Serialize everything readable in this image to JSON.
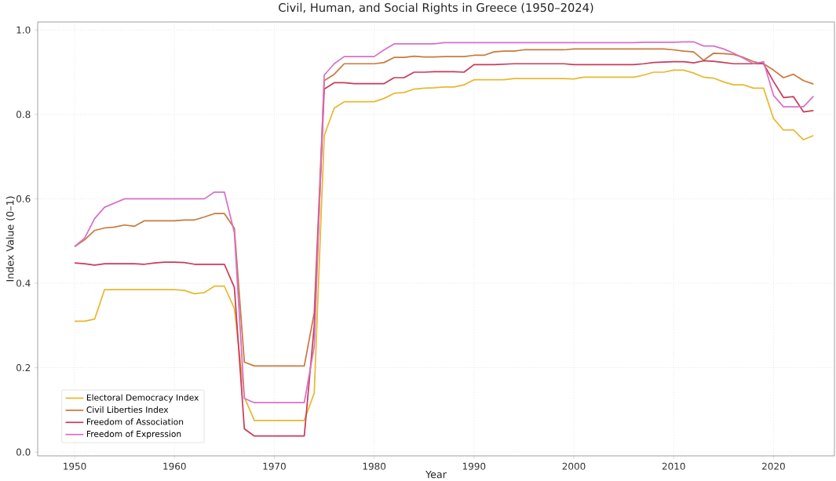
{
  "chart_data": {
    "type": "line",
    "title": "Civil, Human, and Social Rights in Greece (1950–2024)",
    "xlabel": "Year",
    "ylabel": "Index Value (0–1)",
    "x": [
      1950,
      1951,
      1952,
      1953,
      1954,
      1955,
      1956,
      1957,
      1958,
      1959,
      1960,
      1961,
      1962,
      1963,
      1964,
      1965,
      1966,
      1967,
      1968,
      1969,
      1970,
      1971,
      1972,
      1973,
      1974,
      1975,
      1976,
      1977,
      1978,
      1979,
      1980,
      1981,
      1982,
      1983,
      1984,
      1985,
      1986,
      1987,
      1988,
      1989,
      1990,
      1991,
      1992,
      1993,
      1994,
      1995,
      1996,
      1997,
      1998,
      1999,
      2000,
      2001,
      2002,
      2003,
      2004,
      2005,
      2006,
      2007,
      2008,
      2009,
      2010,
      2011,
      2012,
      2013,
      2014,
      2015,
      2016,
      2017,
      2018,
      2019,
      2020,
      2021,
      2022,
      2023,
      2024
    ],
    "series": [
      {
        "name": "Electoral Democracy Index",
        "color": "#e8b830",
        "values": [
          0.31,
          0.31,
          0.315,
          0.385,
          0.385,
          0.385,
          0.385,
          0.385,
          0.385,
          0.385,
          0.385,
          0.383,
          0.375,
          0.378,
          0.393,
          0.393,
          0.34,
          0.13,
          0.075,
          0.075,
          0.075,
          0.075,
          0.075,
          0.075,
          0.14,
          0.75,
          0.815,
          0.83,
          0.83,
          0.83,
          0.83,
          0.838,
          0.85,
          0.852,
          0.86,
          0.862,
          0.863,
          0.865,
          0.865,
          0.87,
          0.882,
          0.882,
          0.882,
          0.882,
          0.885,
          0.885,
          0.885,
          0.885,
          0.885,
          0.885,
          0.884,
          0.888,
          0.888,
          0.888,
          0.888,
          0.888,
          0.888,
          0.893,
          0.9,
          0.9,
          0.905,
          0.905,
          0.898,
          0.888,
          0.886,
          0.877,
          0.87,
          0.87,
          0.862,
          0.862,
          0.79,
          0.763,
          0.763,
          0.74,
          0.75
        ]
      },
      {
        "name": "Civil Liberties Index",
        "color": "#c87a3c",
        "values": [
          0.487,
          0.503,
          0.525,
          0.531,
          0.533,
          0.538,
          0.535,
          0.548,
          0.548,
          0.548,
          0.548,
          0.55,
          0.55,
          0.557,
          0.565,
          0.565,
          0.53,
          0.213,
          0.204,
          0.204,
          0.204,
          0.204,
          0.204,
          0.204,
          0.33,
          0.88,
          0.895,
          0.92,
          0.92,
          0.92,
          0.92,
          0.923,
          0.935,
          0.935,
          0.938,
          0.936,
          0.936,
          0.937,
          0.937,
          0.937,
          0.94,
          0.94,
          0.948,
          0.95,
          0.95,
          0.953,
          0.953,
          0.953,
          0.953,
          0.953,
          0.955,
          0.955,
          0.955,
          0.955,
          0.955,
          0.955,
          0.955,
          0.955,
          0.955,
          0.955,
          0.953,
          0.95,
          0.948,
          0.928,
          0.945,
          0.944,
          0.942,
          0.935,
          0.925,
          0.92,
          0.905,
          0.887,
          0.895,
          0.88,
          0.872
        ]
      },
      {
        "name": "Freedom of Association",
        "color": "#c83c5a",
        "values": [
          0.448,
          0.446,
          0.443,
          0.446,
          0.446,
          0.446,
          0.446,
          0.445,
          0.448,
          0.45,
          0.45,
          0.449,
          0.445,
          0.445,
          0.445,
          0.445,
          0.39,
          0.055,
          0.038,
          0.038,
          0.038,
          0.038,
          0.038,
          0.038,
          0.3,
          0.86,
          0.875,
          0.875,
          0.873,
          0.873,
          0.873,
          0.873,
          0.887,
          0.887,
          0.9,
          0.9,
          0.901,
          0.901,
          0.901,
          0.9,
          0.918,
          0.918,
          0.918,
          0.919,
          0.92,
          0.92,
          0.92,
          0.92,
          0.92,
          0.92,
          0.918,
          0.918,
          0.918,
          0.918,
          0.918,
          0.918,
          0.918,
          0.92,
          0.923,
          0.924,
          0.925,
          0.925,
          0.922,
          0.927,
          0.926,
          0.923,
          0.92,
          0.92,
          0.92,
          0.92,
          0.878,
          0.84,
          0.842,
          0.806,
          0.809
        ]
      },
      {
        "name": "Freedom of Expression",
        "color": "#d870c8",
        "values": [
          0.487,
          0.507,
          0.553,
          0.58,
          0.59,
          0.6,
          0.6,
          0.6,
          0.6,
          0.6,
          0.6,
          0.6,
          0.6,
          0.6,
          0.616,
          0.616,
          0.52,
          0.127,
          0.117,
          0.117,
          0.117,
          0.117,
          0.117,
          0.117,
          0.25,
          0.893,
          0.92,
          0.937,
          0.937,
          0.937,
          0.937,
          0.953,
          0.967,
          0.967,
          0.967,
          0.967,
          0.967,
          0.97,
          0.97,
          0.97,
          0.97,
          0.97,
          0.97,
          0.97,
          0.97,
          0.97,
          0.97,
          0.97,
          0.97,
          0.97,
          0.97,
          0.97,
          0.97,
          0.97,
          0.97,
          0.97,
          0.97,
          0.971,
          0.971,
          0.971,
          0.971,
          0.972,
          0.972,
          0.962,
          0.962,
          0.955,
          0.945,
          0.933,
          0.92,
          0.925,
          0.845,
          0.818,
          0.818,
          0.818,
          0.843
        ]
      }
    ],
    "xlim": [
      1946.3,
      2026.1
    ],
    "ylim": [
      -0.009,
      1.019
    ],
    "xticks": [
      1950,
      1960,
      1970,
      1980,
      1990,
      2000,
      2010,
      2020
    ],
    "yticks": [
      {
        "value": 0,
        "label": "0.0"
      },
      {
        "value": 0.2,
        "label": "0.2"
      },
      {
        "value": 0.4,
        "label": "0.4"
      },
      {
        "value": 0.6,
        "label": "0.6"
      },
      {
        "value": 0.8,
        "label": "0.8"
      },
      {
        "value": 1.0,
        "label": "1.0"
      }
    ],
    "grid": true,
    "legend": "bottom left",
    "marker": "none",
    "line_style": "solid"
  }
}
